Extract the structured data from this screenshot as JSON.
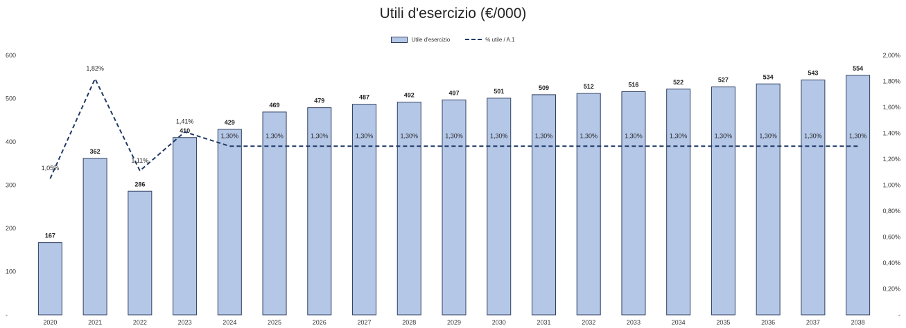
{
  "chart_data": {
    "type": "bar",
    "title": "Utili d'esercizio (€/000)",
    "categories": [
      "2020",
      "2021",
      "2022",
      "2023",
      "2024",
      "2025",
      "2026",
      "2027",
      "2028",
      "2029",
      "2030",
      "2031",
      "2032",
      "2033",
      "2034",
      "2035",
      "2036",
      "2037",
      "2038"
    ],
    "series": [
      {
        "name": "Utile d'esercizio",
        "type": "bar",
        "axis": "left",
        "color": "#b4c7e7",
        "values": [
          167,
          362,
          286,
          410,
          429,
          469,
          479,
          487,
          492,
          497,
          501,
          509,
          512,
          516,
          522,
          527,
          534,
          543,
          554
        ],
        "labels": [
          "167",
          "362",
          "286",
          "410",
          "429",
          "469",
          "479",
          "487",
          "492",
          "497",
          "501",
          "509",
          "512",
          "516",
          "522",
          "527",
          "534",
          "543",
          "554"
        ]
      },
      {
        "name": "% utile / A.1",
        "type": "line",
        "style": "dashed",
        "axis": "right",
        "color": "#1f3864",
        "values": [
          1.05,
          1.82,
          1.11,
          1.41,
          1.3,
          1.3,
          1.3,
          1.3,
          1.3,
          1.3,
          1.3,
          1.3,
          1.3,
          1.3,
          1.3,
          1.3,
          1.3,
          1.3,
          1.3
        ],
        "labels": [
          "1,05%",
          "1,82%",
          "1,11%",
          "1,41%",
          "1,30%",
          "1,30%",
          "1,30%",
          "1,30%",
          "1,30%",
          "1,30%",
          "1,30%",
          "1,30%",
          "1,30%",
          "1,30%",
          "1,30%",
          "1,30%",
          "1,30%",
          "1,30%",
          "1,30%"
        ]
      }
    ],
    "y_left": {
      "min": 0,
      "max": 600,
      "ticks": [
        0,
        100,
        200,
        300,
        400,
        500,
        600
      ],
      "tick_labels": [
        "-",
        "100",
        "200",
        "300",
        "400",
        "500",
        "600"
      ]
    },
    "y_right": {
      "min": 0,
      "max": 2.0,
      "ticks": [
        0,
        0.2,
        0.4,
        0.6,
        0.8,
        1.0,
        1.2,
        1.4,
        1.6,
        1.8,
        2.0
      ],
      "tick_labels": [
        "-",
        "0,20%",
        "0,40%",
        "0,60%",
        "0,80%",
        "1,00%",
        "1,20%",
        "1,40%",
        "1,60%",
        "1,80%",
        "2,00%"
      ]
    },
    "legend_position": "top-center",
    "grid": false
  }
}
